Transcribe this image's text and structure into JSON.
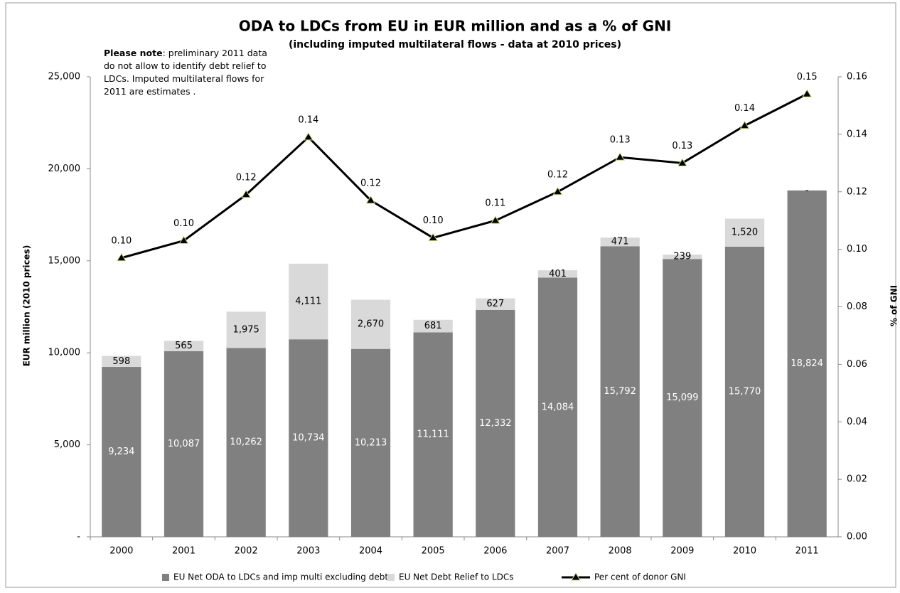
{
  "chart_data": {
    "type": "bar-line",
    "title": "ODA to LDCs from EU in EUR million and as a % of GNI",
    "subtitle": "(including imputed multilateral flows - data at 2010 prices)",
    "note_bold": "Please note",
    "note": ": preliminary 2011 data do not allow to identify debt relief to LDCs. Imputed multilateral flows for 2011 are estimates .",
    "ylabel": "EUR million (2010 prices)",
    "y2label": "% of GNI",
    "categories": [
      "2000",
      "2001",
      "2002",
      "2003",
      "2004",
      "2005",
      "2006",
      "2007",
      "2008",
      "2009",
      "2010",
      "2011"
    ],
    "series": [
      {
        "name": "EU Net ODA to LDCs and imp multi excluding debt",
        "color": "#808080",
        "kind": "bar",
        "values": [
          9234,
          10087,
          10262,
          10734,
          10213,
          11111,
          12332,
          14084,
          15792,
          15099,
          15770,
          18824
        ],
        "value_labels": [
          "9,234",
          "10,087",
          "10,262",
          "10,734",
          "10,213",
          "11,111",
          "12,332",
          "14,084",
          "15,792",
          "15,099",
          "15,770",
          "18,824"
        ]
      },
      {
        "name": "EU Net Debt Relief to LDCs",
        "color": "#d9d9d9",
        "kind": "bar",
        "values": [
          598,
          565,
          1975,
          4111,
          2670,
          681,
          627,
          401,
          471,
          239,
          1520,
          0
        ],
        "value_labels": [
          "598",
          "565",
          "1,975",
          "4,111",
          "2,670",
          "681",
          "627",
          "401",
          "471",
          "239",
          "1,520",
          "-"
        ]
      },
      {
        "name": "Per cent of donor GNI",
        "color": "#000000",
        "kind": "line",
        "axis": "y2",
        "values": [
          0.097,
          0.103,
          0.119,
          0.139,
          0.117,
          0.104,
          0.11,
          0.12,
          0.132,
          0.13,
          0.143,
          0.154
        ],
        "value_labels": [
          "0.10",
          "0.10",
          "0.12",
          "0.14",
          "0.12",
          "0.10",
          "0.11",
          "0.12",
          "0.13",
          "0.13",
          "0.14",
          "0.15"
        ]
      }
    ],
    "stacked": true,
    "ylim": [
      0,
      25000
    ],
    "yticks": [
      {
        "value": 0,
        "label": "-"
      },
      {
        "value": 5000,
        "label": "5,000"
      },
      {
        "value": 10000,
        "label": "10,000"
      },
      {
        "value": 15000,
        "label": "15,000"
      },
      {
        "value": 20000,
        "label": "20,000"
      },
      {
        "value": 25000,
        "label": "25,000"
      }
    ],
    "y2lim": [
      0,
      0.16
    ],
    "y2ticks": [
      {
        "value": 0,
        "label": "0.00"
      },
      {
        "value": 0.02,
        "label": "0.02"
      },
      {
        "value": 0.04,
        "label": "0.04"
      },
      {
        "value": 0.06,
        "label": "0.06"
      },
      {
        "value": 0.08,
        "label": "0.08"
      },
      {
        "value": 0.1,
        "label": "0.10"
      },
      {
        "value": 0.12,
        "label": "0.12"
      },
      {
        "value": 0.14,
        "label": "0.14"
      },
      {
        "value": 0.16,
        "label": "0.16"
      }
    ],
    "grid": false,
    "legend": "bottom"
  }
}
